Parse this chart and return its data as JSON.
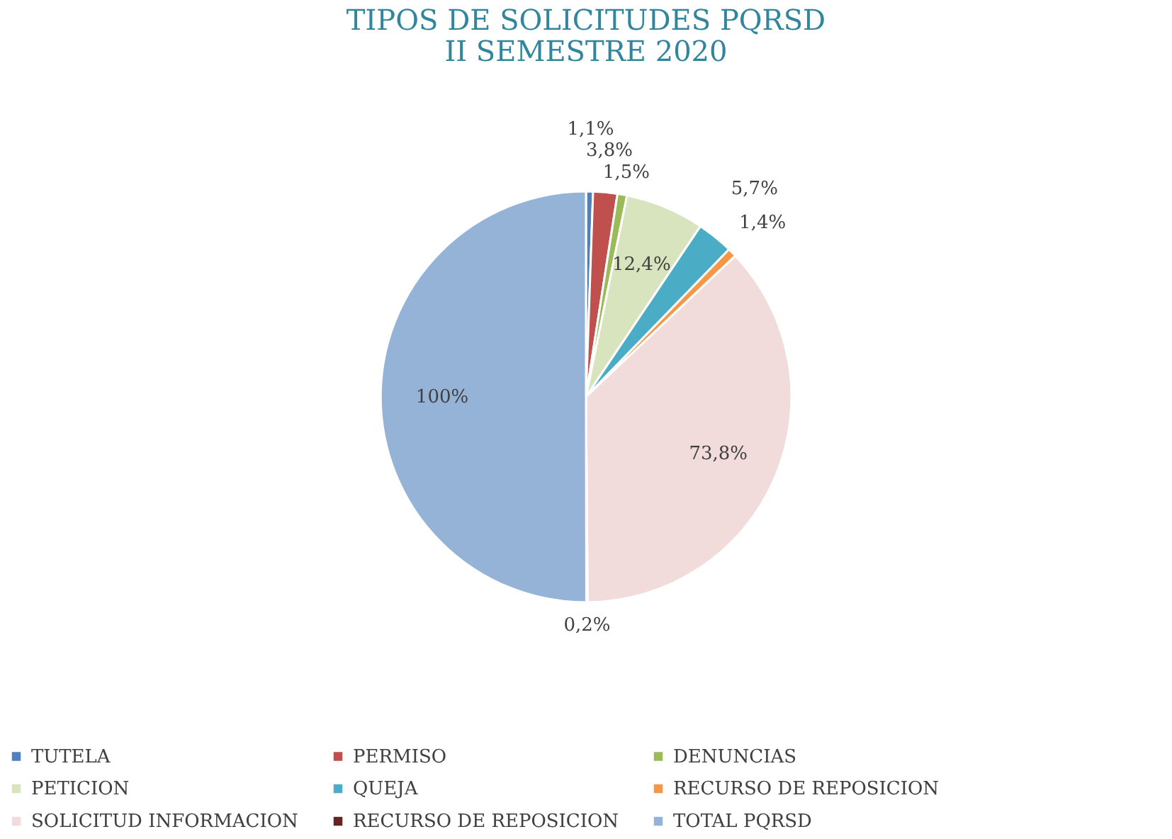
{
  "chart_data": {
    "type": "pie",
    "title": "TIPOS DE SOLICITUDES PQRSD\nII SEMESTRE 2020",
    "categories": [
      "TUTELA",
      "PERMISO",
      "DENUNCIAS",
      "PETICION",
      "QUEJA",
      "RECURSO DE REPOSICION",
      "SOLICITUD INFORMACION",
      "RECURSO DE REPOSICION",
      "TOTAL PQRSD"
    ],
    "values": [
      1.1,
      3.8,
      1.5,
      12.4,
      5.7,
      1.4,
      73.8,
      0.2,
      100
    ],
    "value_labels": [
      "1,1%",
      "3,8%",
      "1,5%",
      "12,4%",
      "5,7%",
      "1,4%",
      "73,8%",
      "0,2%",
      "100%"
    ],
    "colors": [
      "#4f81bd",
      "#c0504d",
      "#9bbb59",
      "#d7e4bd",
      "#4bacc6",
      "#f79646",
      "#f2dcdb",
      "#632523",
      "#95b3d7"
    ],
    "legend": "bottom"
  }
}
